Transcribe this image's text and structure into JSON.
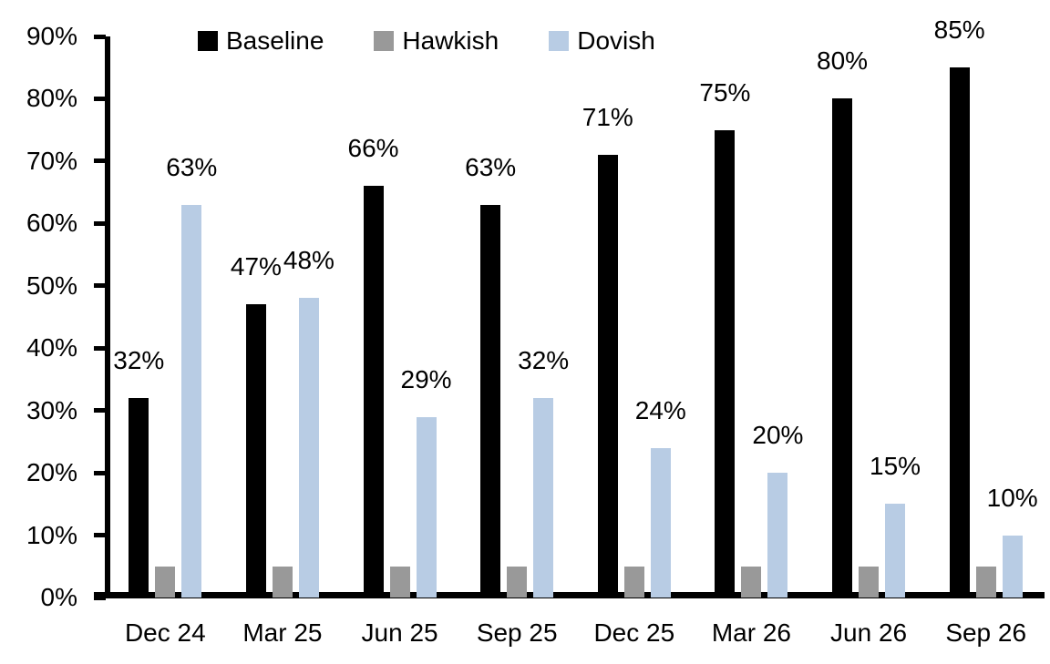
{
  "chart_data": {
    "type": "bar",
    "title": "",
    "xlabel": "",
    "ylabel": "",
    "categories": [
      "Dec 24",
      "Mar 25",
      "Jun 25",
      "Sep 25",
      "Dec 25",
      "Mar 26",
      "Jun 26",
      "Sep 26"
    ],
    "series": [
      {
        "name": "Baseline",
        "color": "#000000",
        "values": [
          32,
          47,
          66,
          63,
          71,
          75,
          80,
          85
        ],
        "data_labels": [
          "32%",
          "47%",
          "66%",
          "63%",
          "71%",
          "75%",
          "80%",
          "85%"
        ]
      },
      {
        "name": "Hawkish",
        "color": "#999999",
        "values": [
          5,
          5,
          5,
          5,
          5,
          5,
          5,
          5
        ],
        "data_labels": []
      },
      {
        "name": "Dovish",
        "color": "#B8CCE4",
        "values": [
          63,
          48,
          29,
          32,
          24,
          20,
          15,
          10
        ],
        "data_labels": [
          "63%",
          "48%",
          "29%",
          "32%",
          "24%",
          "20%",
          "15%",
          "10%"
        ]
      }
    ],
    "ylim": [
      0,
      90
    ],
    "ytick_step": 10,
    "ytick_labels": [
      "0%",
      "10%",
      "20%",
      "30%",
      "40%",
      "50%",
      "60%",
      "70%",
      "80%",
      "90%"
    ],
    "grid": false,
    "legend_position": "top",
    "legend_entries": [
      "Baseline",
      "Hawkish",
      "Dovish"
    ],
    "axis_color": "#000000",
    "background_color": "#FFFFFF"
  }
}
